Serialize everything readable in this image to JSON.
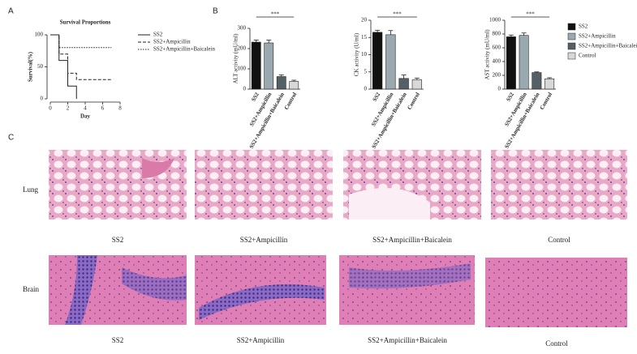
{
  "panel_labels": [
    "A",
    "B",
    "C"
  ],
  "chart_data": [
    {
      "type": "line",
      "title": "Survival Proportions",
      "xlabel": "Day",
      "ylabel": "Survival(%)",
      "xlim": [
        0,
        8
      ],
      "xticks": [
        0,
        2,
        4,
        6,
        8
      ],
      "ylim": [
        0,
        100
      ],
      "yticks": [
        0,
        50,
        100
      ],
      "series": [
        {
          "name": "SS2",
          "style": "solid",
          "color": "#222222",
          "x": [
            0,
            1,
            1,
            2,
            2,
            3,
            3
          ],
          "values": [
            100,
            100,
            60,
            60,
            20,
            20,
            0
          ]
        },
        {
          "name": "SS2+Ampicillin",
          "style": "dashed",
          "color": "#222222",
          "x": [
            0,
            1,
            1,
            2,
            2,
            3,
            3,
            7
          ],
          "values": [
            100,
            100,
            70,
            70,
            40,
            40,
            30,
            30
          ]
        },
        {
          "name": "SS2+Ampicillin+Baicalein",
          "style": "dotted",
          "color": "#222222",
          "x": [
            0,
            1,
            1,
            7
          ],
          "values": [
            100,
            100,
            80,
            80
          ]
        }
      ]
    },
    {
      "type": "bar",
      "ylabel": "ALT activity (mU/ml)",
      "annotation": "***",
      "categories": [
        "SS2",
        "SS2+Ampicillin",
        "SS2+Ampicillin+Baicalein",
        "Control"
      ],
      "values": [
        232,
        228,
        62,
        38
      ],
      "errors": [
        10,
        14,
        8,
        6
      ],
      "colors": [
        "#111111",
        "#9aa8b0",
        "#556066",
        "#d8d8d8"
      ],
      "ylim": [
        0,
        300
      ],
      "yticks": [
        0,
        100,
        200,
        300
      ]
    },
    {
      "type": "bar",
      "ylabel": "CK activity (U/ml)",
      "annotation": "***",
      "categories": [
        "SS2",
        "SS2+Ampicillin",
        "SS2+Ampicillin+Baicalein",
        "Control"
      ],
      "values": [
        16.5,
        15.8,
        3.1,
        2.7
      ],
      "errors": [
        0.6,
        1.2,
        1.0,
        0.5
      ],
      "colors": [
        "#111111",
        "#9aa8b0",
        "#556066",
        "#d8d8d8"
      ],
      "ylim": [
        0,
        20
      ],
      "yticks": [
        0,
        5,
        10,
        15,
        20
      ]
    },
    {
      "type": "bar",
      "ylabel": "AST activity (mU/ml)",
      "annotation": "***",
      "categories": [
        "SS2",
        "SS2+Ampicillin",
        "SS2+Ampicillin+Baicalein",
        "Control"
      ],
      "values": [
        760,
        780,
        240,
        150
      ],
      "errors": [
        25,
        35,
        10,
        15
      ],
      "colors": [
        "#111111",
        "#9aa8b0",
        "#556066",
        "#d8d8d8"
      ],
      "ylim": [
        0,
        1000
      ],
      "yticks": [
        0,
        200,
        400,
        600,
        800,
        1000
      ],
      "legend": "right"
    }
  ],
  "histology": {
    "rows": [
      {
        "label": "Lung",
        "captions": [
          "SS2",
          "SS2+Ampicillin",
          "SS2+Ampicillin+Baicalein",
          "Control"
        ]
      },
      {
        "label": "Brain",
        "captions": [
          "SS2",
          "SS2+Ampicillin",
          "SS2+Ampicillin+Baicalein",
          "Control"
        ]
      }
    ]
  }
}
